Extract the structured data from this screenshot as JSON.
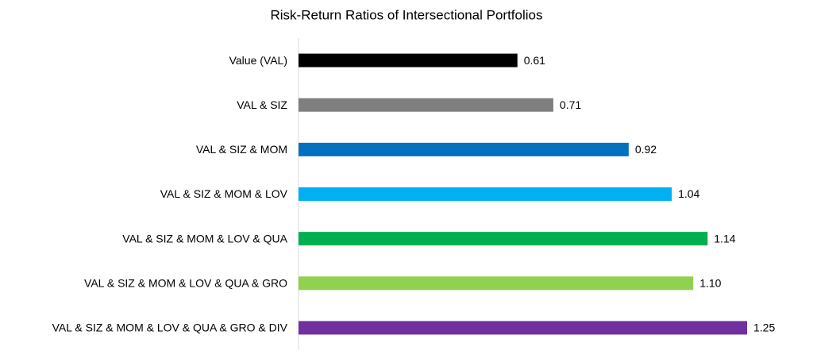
{
  "chart_data": {
    "type": "hbar",
    "title": "Risk-Return Ratios of Intersectional Portfolios",
    "categories": [
      "Value (VAL)",
      "VAL & SIZ",
      "VAL & SIZ & MOM",
      "VAL & SIZ & MOM & LOV",
      "VAL & SIZ & MOM & LOV & QUA",
      "VAL & SIZ & MOM & LOV & QUA & GRO",
      "VAL & SIZ & MOM & LOV & QUA & GRO & DIV"
    ],
    "values": [
      0.61,
      0.71,
      0.92,
      1.04,
      1.14,
      1.1,
      1.25
    ],
    "value_labels": [
      "0.61",
      "0.71",
      "0.92",
      "1.04",
      "1.14",
      "1.10",
      "1.25"
    ],
    "colors": [
      "#000000",
      "#7f7f7f",
      "#0070c0",
      "#00b0f0",
      "#00b050",
      "#92d050",
      "#7030a0"
    ]
  }
}
